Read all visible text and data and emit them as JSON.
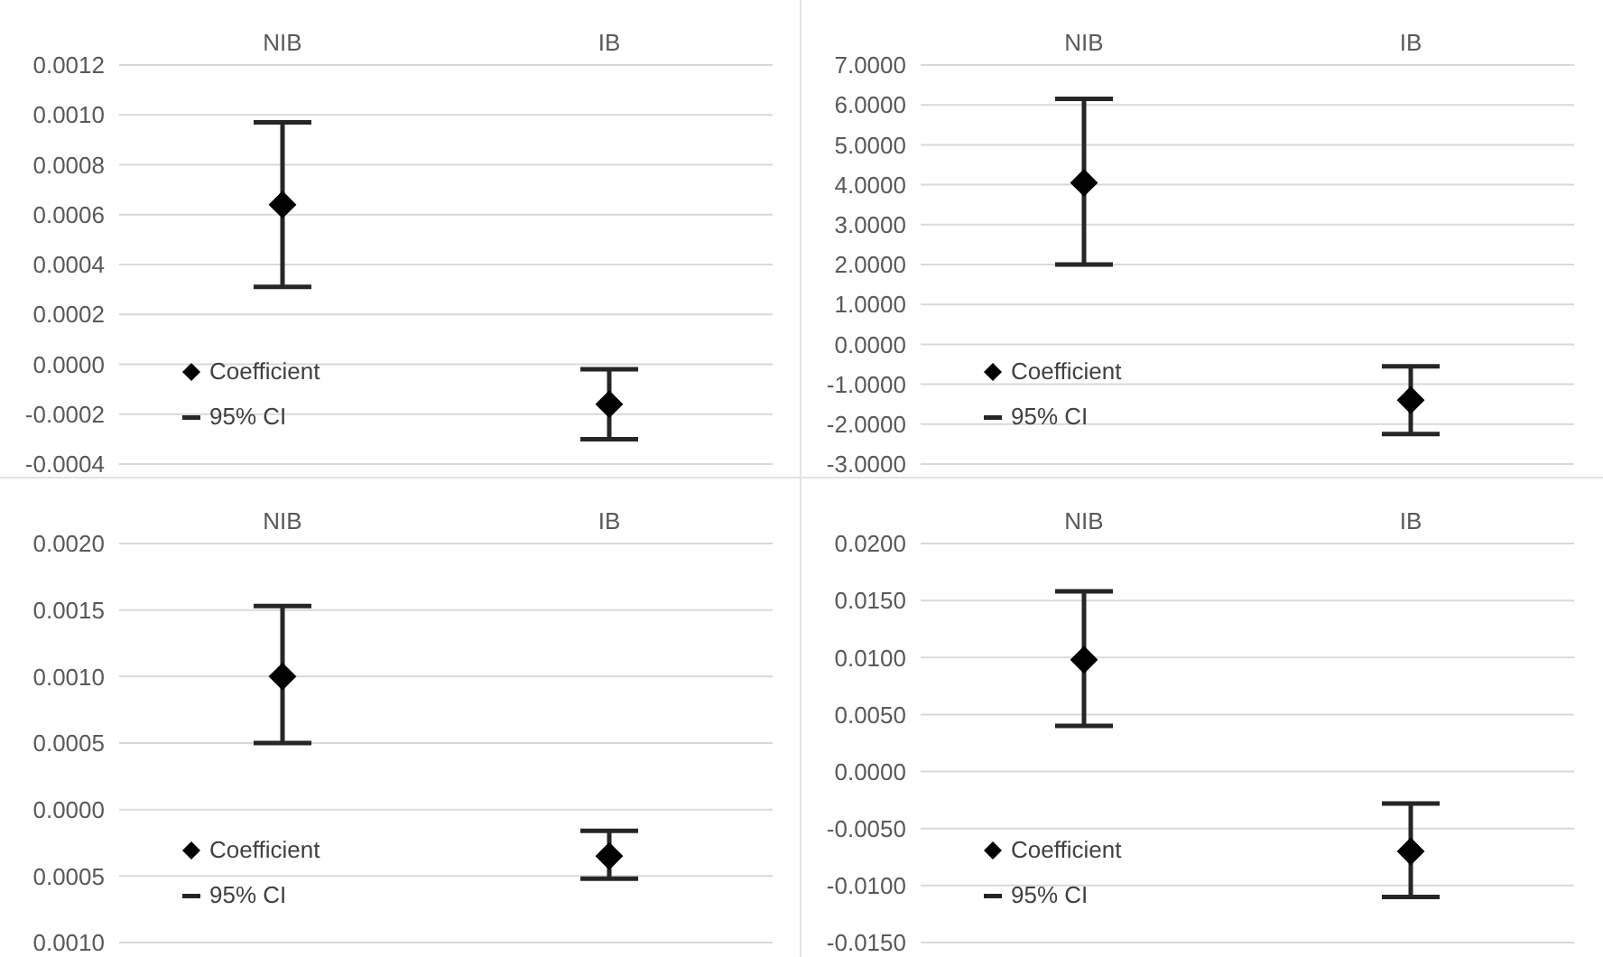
{
  "chart_data": [
    {
      "type": "scatter",
      "categories": [
        "NIB",
        "IB"
      ],
      "series": [
        {
          "name": "Coefficient",
          "color": "#000000",
          "values": [
            0.00064,
            -0.00016
          ],
          "errors": [
            [
              0.00031,
              0.00097
            ],
            [
              -0.0003,
              -2e-05
            ]
          ]
        }
      ],
      "ylim": [
        -0.0004,
        0.0012
      ],
      "yticks": [
        {
          "value": -0.0004,
          "label": "-0.0004"
        },
        {
          "value": -0.0002,
          "label": "-0.0002"
        },
        {
          "value": 0,
          "label": "0.0000"
        },
        {
          "value": 0.0002,
          "label": "0.0002"
        },
        {
          "value": 0.0004,
          "label": "0.0004"
        },
        {
          "value": 0.0006,
          "label": "0.0006"
        },
        {
          "value": 0.0008,
          "label": "0.0008"
        },
        {
          "value": 0.001,
          "label": "0.0010"
        },
        {
          "value": 0.0012,
          "label": "0.0012"
        }
      ],
      "grid": "y",
      "legend": "bottom left",
      "marker": "diamond",
      "annotations": [
        "95% CI"
      ]
    },
    {
      "type": "scatter",
      "categories": [
        "NIB",
        "IB"
      ],
      "series": [
        {
          "name": "Coefficient",
          "color": "#000000",
          "values": [
            4.05,
            -1.4
          ],
          "errors": [
            [
              2.0,
              6.15
            ],
            [
              -2.25,
              -0.55
            ]
          ]
        }
      ],
      "ylim": [
        -3,
        7
      ],
      "yticks": [
        {
          "value": -3,
          "label": "-3.0000"
        },
        {
          "value": -2,
          "label": "-2.0000"
        },
        {
          "value": -1,
          "label": "-1.0000"
        },
        {
          "value": 0,
          "label": "0.0000"
        },
        {
          "value": 1,
          "label": "1.0000"
        },
        {
          "value": 2,
          "label": "2.0000"
        },
        {
          "value": 3,
          "label": "3.0000"
        },
        {
          "value": 4,
          "label": "4.0000"
        },
        {
          "value": 5,
          "label": "5.0000"
        },
        {
          "value": 6,
          "label": "6.0000"
        },
        {
          "value": 7,
          "label": "7.0000"
        }
      ],
      "grid": "y",
      "legend": "bottom left",
      "marker": "diamond",
      "annotations": [
        "95% CI"
      ]
    },
    {
      "type": "scatter",
      "categories": [
        "NIB",
        "IB"
      ],
      "series": [
        {
          "name": "Coefficient",
          "color": "#000000",
          "values": [
            0.001,
            -0.00035
          ],
          "errors": [
            [
              0.0005,
              0.00153
            ],
            [
              -0.00052,
              -0.00016
            ]
          ]
        }
      ],
      "ylim": [
        -0.001,
        0.002
      ],
      "yticks": [
        {
          "value": -0.001,
          "label": "0.0010"
        },
        {
          "value": -0.0005,
          "label": "0.0005"
        },
        {
          "value": 0,
          "label": "0.0000"
        },
        {
          "value": 0.0005,
          "label": "0.0005"
        },
        {
          "value": 0.001,
          "label": "0.0010"
        },
        {
          "value": 0.0015,
          "label": "0.0015"
        },
        {
          "value": 0.002,
          "label": "0.0020"
        }
      ],
      "grid": "y",
      "legend": "bottom left",
      "marker": "diamond",
      "annotations": [
        "95% CI"
      ]
    },
    {
      "type": "scatter",
      "categories": [
        "NIB",
        "IB"
      ],
      "series": [
        {
          "name": "Coefficient",
          "color": "#000000",
          "values": [
            0.0098,
            -0.007
          ],
          "errors": [
            [
              0.004,
              0.0158
            ],
            [
              -0.011,
              -0.0028
            ]
          ]
        }
      ],
      "ylim": [
        -0.015,
        0.02
      ],
      "yticks": [
        {
          "value": -0.015,
          "label": "-0.0150"
        },
        {
          "value": -0.01,
          "label": "-0.0100"
        },
        {
          "value": -0.005,
          "label": "-0.0050"
        },
        {
          "value": 0,
          "label": "0.0000"
        },
        {
          "value": 0.005,
          "label": "0.0050"
        },
        {
          "value": 0.01,
          "label": "0.0100"
        },
        {
          "value": 0.015,
          "label": "0.0150"
        },
        {
          "value": 0.02,
          "label": "0.0200"
        }
      ],
      "grid": "y",
      "legend": "bottom left",
      "marker": "diamond",
      "annotations": [
        "95% CI"
      ]
    }
  ]
}
